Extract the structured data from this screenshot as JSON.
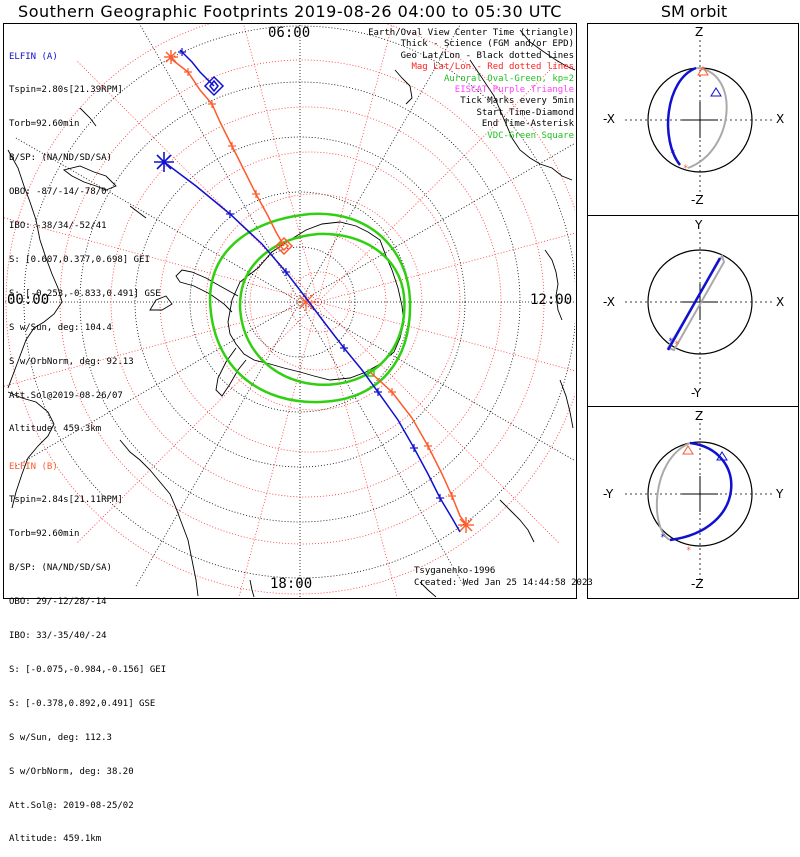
{
  "header": {
    "title": "Southern Geographic Footprints 2019-08-26 04:00 to 05:30 UTC",
    "orbit_title": "SM orbit"
  },
  "map": {
    "hour_labels": {
      "top": "06:00",
      "left": "00:00",
      "right": "12:00",
      "bottom": "18:00"
    },
    "colors": {
      "elfin_a": "#1010d0",
      "elfin_b": "#ff5a2a",
      "mag_grid": "#ff3030",
      "geo_grid": "#000000",
      "oval": "#30d010",
      "vdc": "#30d010",
      "eiscat": "#ff3dff"
    }
  },
  "legend": [
    {
      "text": "Earth/Oval View Center Time (triangle)",
      "color": "#000000"
    },
    {
      "text": "Thick - Science (FGM and/or EPD)",
      "color": "#000000"
    },
    {
      "text": "Geo Lat/Lon - Black dotted lines",
      "color": "#000000"
    },
    {
      "text": "Mag Lat/Lon - Red dotted lines",
      "color": "#ff2020"
    },
    {
      "text": "Auroral Oval-Green, kp=2",
      "color": "#20c020"
    },
    {
      "text": "EISCAT-Purple Triangle",
      "color": "#ff40ff"
    },
    {
      "text": "Tick Marks every 5min",
      "color": "#000000"
    },
    {
      "text": "Start Time-Diamond",
      "color": "#000000"
    },
    {
      "text": "End Time-Asterisk",
      "color": "#000000"
    },
    {
      "text": "VDC-Green Square",
      "color": "#20c020"
    }
  ],
  "elfin_a": {
    "title": "ELFIN (A)",
    "lines": [
      "Tspin=2.80s[21.39RPM]",
      "Torb=92.60min",
      "B/SP: (NA/ND/SD/SA)",
      "OBO: -87/-14/-78/0",
      "IBO: -38/34/-52/41",
      "S: [0.607,0.377,0.698] GEI",
      "S: [-0.253,-0.833,0.491] GSE",
      "S w/Sun, deg: 104.4",
      "S w/OrbNorm, deg: 92.13",
      "Att.Sol@2019-08-26/07",
      "Altitude: 459.3km"
    ]
  },
  "elfin_b": {
    "title": "ELFIN (B)",
    "lines": [
      "Tspin=2.84s[21.11RPM]",
      "Torb=92.60min",
      "B/SP: (NA/ND/SD/SA)",
      "OBO: 29/-12/28/-14",
      "IBO: 33/-35/40/-24",
      "S: [-0.075,-0.984,-0.156] GEI",
      "S: [-0.378,0.892,0.491] GSE",
      "S w/Sun, deg: 112.3",
      "S w/OrbNorm, deg: 38.20",
      "Att.Sol@: 2019-08-25/02",
      "Altitude: 459.1km"
    ]
  },
  "footer": {
    "credit": "Tsyganenko-1996",
    "created": "Created: Wed Jan 25 14:44:58 2023"
  },
  "orbit_panels": [
    {
      "top": "Z",
      "bottom": "-Z",
      "left": "-X",
      "right": "X"
    },
    {
      "top": "Y",
      "bottom": "-Y",
      "left": "-X",
      "right": "X"
    },
    {
      "top": "Z",
      "bottom": "-Z",
      "left": "-Y",
      "right": "Y"
    }
  ]
}
